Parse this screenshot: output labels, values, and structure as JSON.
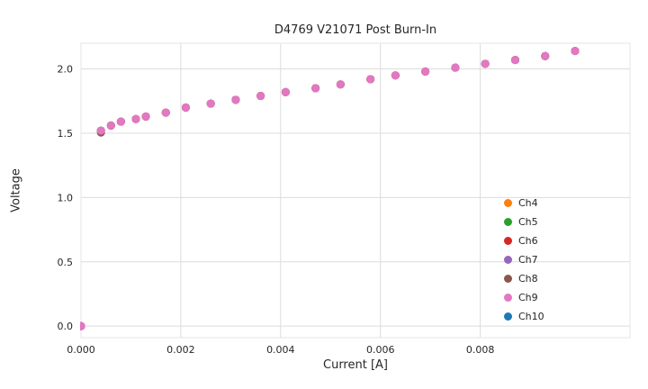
{
  "chart_data": {
    "type": "scatter",
    "title": "D4769 V21071 Post Burn-In",
    "xlabel": "Current [A]",
    "ylabel": "Voltage",
    "xlim": [
      0,
      0.011
    ],
    "ylim": [
      -0.09,
      2.2
    ],
    "grid": true,
    "legend_position": "lower right",
    "xticks": {
      "values": [
        0,
        0.002,
        0.004,
        0.006,
        0.008
      ],
      "labels": [
        "0.000",
        "0.002",
        "0.004",
        "0.006",
        "0.008"
      ]
    },
    "yticks": {
      "values": [
        0.0,
        0.5,
        1.0,
        1.5,
        2.0
      ],
      "labels": [
        "0.0",
        "0.5",
        "1.0",
        "1.5",
        "2.0"
      ]
    },
    "x": [
      0.0,
      0.0004,
      0.0006,
      0.0008,
      0.0011,
      0.0013,
      0.0017,
      0.0021,
      0.0026,
      0.0031,
      0.0036,
      0.0041,
      0.0047,
      0.0052,
      0.0058,
      0.0063,
      0.0069,
      0.0075,
      0.0081,
      0.0087,
      0.0093,
      0.0099
    ],
    "series": [
      {
        "name": "Ch4",
        "color": "#ff7f0e",
        "y": [
          0.0,
          1.52,
          1.56,
          1.59,
          1.61,
          1.63,
          1.66,
          1.7,
          1.73,
          1.76,
          1.79,
          1.82,
          1.85,
          1.88,
          1.92,
          1.95,
          1.98,
          2.01,
          2.04,
          2.07,
          2.1,
          2.14
        ]
      },
      {
        "name": "Ch5",
        "color": "#2ca02c",
        "y": [
          0.0,
          1.52,
          1.56,
          1.59,
          1.61,
          1.63,
          1.66,
          1.7,
          1.73,
          1.76,
          1.79,
          1.82,
          1.85,
          1.88,
          1.92,
          1.95,
          1.98,
          2.01,
          2.04,
          2.07,
          2.1,
          2.14
        ]
      },
      {
        "name": "Ch6",
        "color": "#d62728",
        "y": [
          0.0,
          1.52,
          1.56,
          1.59,
          1.61,
          1.63,
          1.66,
          1.7,
          1.73,
          1.76,
          1.79,
          1.82,
          1.85,
          1.88,
          1.92,
          1.95,
          1.98,
          2.01,
          2.04,
          2.07,
          2.1,
          2.14
        ]
      },
      {
        "name": "Ch7",
        "color": "#9467bd",
        "y": [
          0.0,
          1.52,
          1.56,
          1.59,
          1.61,
          1.63,
          1.66,
          1.7,
          1.73,
          1.76,
          1.79,
          1.82,
          1.85,
          1.88,
          1.92,
          1.95,
          1.98,
          2.01,
          2.04,
          2.07,
          2.1,
          2.14
        ]
      },
      {
        "name": "Ch8",
        "color": "#8c564b",
        "y": [
          0.0,
          1.505,
          1.56,
          1.59,
          1.61,
          1.63,
          1.66,
          1.7,
          1.73,
          1.76,
          1.79,
          1.82,
          1.85,
          1.88,
          1.92,
          1.95,
          1.98,
          2.01,
          2.04,
          2.07,
          2.1,
          2.14
        ]
      },
      {
        "name": "Ch9",
        "color": "#e377c2",
        "y": [
          0.0,
          1.52,
          1.56,
          1.59,
          1.61,
          1.63,
          1.66,
          1.7,
          1.73,
          1.76,
          1.79,
          1.82,
          1.85,
          1.88,
          1.92,
          1.95,
          1.98,
          2.01,
          2.04,
          2.07,
          2.1,
          2.14
        ]
      },
      {
        "name": "Ch10",
        "color": "#1f77b4",
        "y": []
      }
    ],
    "style": {
      "grid_color": "#dcdcdc",
      "border_color": "#e4e4e4",
      "tick_label_color": "#262626",
      "marker_radius": 4.5
    }
  }
}
